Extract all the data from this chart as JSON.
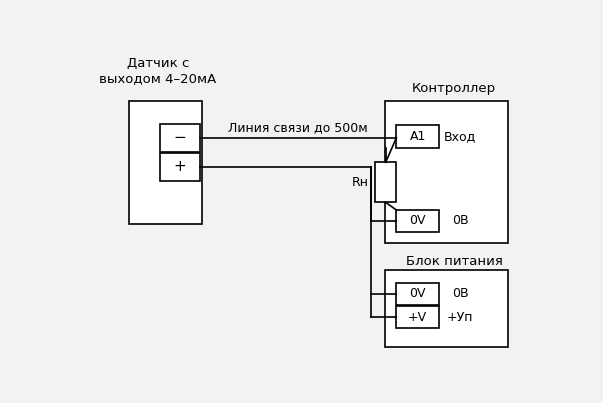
{
  "bg_color": "#f2f2f2",
  "line_color": "#000000",
  "text_color": "#000000",
  "sensor_label": "Датчик с\nвыходом 4–20мА",
  "controller_label": "Контроллер",
  "power_label": "Блок питания",
  "line_label": "Линия связи до 500м",
  "vhod_label": "Вход",
  "ov_ctrl_label": "0В",
  "ov_pwr_label": "0В",
  "up_pwr_label": "+Уп",
  "A1_label": "A1",
  "Rn_label": "Rн",
  "OV_ctrl_box": "0V",
  "OV_pwr_box": "0V",
  "PV_pwr_box": "+V",
  "minus_label": "−",
  "plus_label": "+"
}
